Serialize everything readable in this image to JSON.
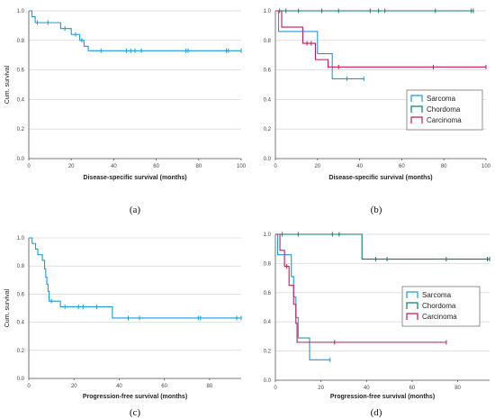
{
  "chart_data": [
    {
      "type": "line",
      "caption": "(a)",
      "xlabel": "Disease-specific survival (months)",
      "ylabel": "Cum. survival",
      "xlim": [
        0,
        100
      ],
      "ylim": [
        0,
        1.0
      ],
      "xticks": [
        0,
        20,
        40,
        60,
        80,
        100
      ],
      "yticks": [
        0.0,
        0.2,
        0.4,
        0.6,
        0.8,
        1.0
      ],
      "xtick_labels": [
        "0",
        "20",
        "40",
        "60",
        "80",
        "100"
      ],
      "ytick_labels": [
        "0.0",
        "0.2",
        "0.4",
        "0.6",
        "0.8",
        "1.0"
      ],
      "series": [
        {
          "color": "#1a9bd7",
          "steps": [
            [
              0,
              1.0
            ],
            [
              1.5,
              0.96
            ],
            [
              3,
              0.92
            ],
            [
              15,
              0.88
            ],
            [
              20,
              0.84
            ],
            [
              24,
              0.8
            ],
            [
              26,
              0.76
            ],
            [
              28,
              0.73
            ],
            [
              100,
              0.73
            ]
          ],
          "censor": [
            [
              4,
              0.92
            ],
            [
              9,
              0.92
            ],
            [
              17,
              0.88
            ],
            [
              22,
              0.84
            ],
            [
              25,
              0.8
            ],
            [
              34,
              0.73
            ],
            [
              46,
              0.73
            ],
            [
              48,
              0.73
            ],
            [
              50,
              0.73
            ],
            [
              53,
              0.73
            ],
            [
              74,
              0.73
            ],
            [
              75,
              0.73
            ],
            [
              93,
              0.73
            ],
            [
              94,
              0.73
            ],
            [
              100,
              0.73
            ]
          ]
        }
      ]
    },
    {
      "type": "line",
      "caption": "(b)",
      "xlabel": "Disease-specific survival (months)",
      "ylabel": "",
      "xlim": [
        0,
        100
      ],
      "ylim": [
        0,
        1.0
      ],
      "xticks": [
        0,
        20,
        40,
        60,
        80,
        100
      ],
      "yticks": [
        0.0,
        0.2,
        0.4,
        0.6,
        0.8,
        1.0
      ],
      "xtick_labels": [
        "0",
        "20",
        "40",
        "60",
        "80",
        "100"
      ],
      "ytick_labels": [
        "0.0",
        "0.2",
        "0.4",
        "0.6",
        "0.8",
        "1.0"
      ],
      "legend": {
        "position": "right",
        "entries": [
          "Sarcoma",
          "Chordoma",
          "Carcinoma"
        ]
      },
      "series": [
        {
          "name": "Sarcoma",
          "color": "#1a9bd7",
          "steps": [
            [
              0,
              1.0
            ],
            [
              1.5,
              0.86
            ],
            [
              14,
              0.86
            ],
            [
              20,
              0.71
            ],
            [
              27,
              0.54
            ],
            [
              42,
              0.54
            ]
          ],
          "censor": [
            [
              34,
              0.54
            ],
            [
              42,
              0.54
            ]
          ]
        },
        {
          "name": "Chordoma",
          "color": "#117a6e",
          "steps": [
            [
              0,
              1.0
            ],
            [
              94,
              1.0
            ]
          ],
          "censor": [
            [
              2,
              1.0
            ],
            [
              5,
              1.0
            ],
            [
              11,
              1.0
            ],
            [
              22,
              1.0
            ],
            [
              30,
              1.0
            ],
            [
              45,
              1.0
            ],
            [
              49,
              1.0
            ],
            [
              52,
              1.0
            ],
            [
              76,
              1.0
            ],
            [
              93,
              1.0
            ],
            [
              94,
              1.0
            ]
          ]
        },
        {
          "name": "Carcinoma",
          "color": "#c2185b",
          "steps": [
            [
              0,
              1.0
            ],
            [
              3,
              0.89
            ],
            [
              13,
              0.78
            ],
            [
              19,
              0.67
            ],
            [
              25,
              0.62
            ],
            [
              100,
              0.62
            ]
          ],
          "censor": [
            [
              15,
              0.78
            ],
            [
              17,
              0.78
            ],
            [
              30,
              0.62
            ],
            [
              75,
              0.62
            ],
            [
              100,
              0.62
            ]
          ]
        }
      ]
    },
    {
      "type": "line",
      "caption": "(c)",
      "xlabel": "Progression-free survival (months)",
      "ylabel": "Cum. survival",
      "xlim": [
        0,
        94
      ],
      "ylim": [
        0,
        1.0
      ],
      "xticks": [
        0,
        20,
        40,
        60,
        80
      ],
      "yticks": [
        0.0,
        0.2,
        0.4,
        0.6,
        0.8,
        1.0
      ],
      "xtick_labels": [
        "0",
        "20",
        "40",
        "60",
        "80"
      ],
      "ytick_labels": [
        "0.0",
        "0.2",
        "0.4",
        "0.6",
        "0.8",
        "1.0"
      ],
      "series": [
        {
          "color": "#1a9bd7",
          "steps": [
            [
              0,
              1.0
            ],
            [
              1.5,
              0.96
            ],
            [
              3,
              0.92
            ],
            [
              4,
              0.88
            ],
            [
              6,
              0.84
            ],
            [
              7,
              0.78
            ],
            [
              7.5,
              0.72
            ],
            [
              8,
              0.67
            ],
            [
              8.5,
              0.62
            ],
            [
              9,
              0.55
            ],
            [
              14,
              0.51
            ],
            [
              37,
              0.43
            ],
            [
              94,
              0.43
            ]
          ],
          "censor": [
            [
              10,
              0.55
            ],
            [
              16,
              0.51
            ],
            [
              22,
              0.51
            ],
            [
              24,
              0.51
            ],
            [
              30,
              0.51
            ],
            [
              44,
              0.43
            ],
            [
              49,
              0.43
            ],
            [
              75,
              0.43
            ],
            [
              76,
              0.43
            ],
            [
              92,
              0.43
            ],
            [
              94,
              0.43
            ]
          ]
        }
      ]
    },
    {
      "type": "line",
      "caption": "(d)",
      "xlabel": "Progression-free survival (months)",
      "ylabel": "",
      "xlim": [
        0,
        94
      ],
      "ylim": [
        0,
        1.0
      ],
      "xticks": [
        0,
        20,
        40,
        60,
        80
      ],
      "yticks": [
        0.0,
        0.2,
        0.4,
        0.6,
        0.8,
        1.0
      ],
      "xtick_labels": [
        "0",
        "20",
        "40",
        "60",
        "80"
      ],
      "ytick_labels": [
        "0.0",
        "0.2",
        "0.4",
        "0.6",
        "0.8",
        "1.0"
      ],
      "legend": {
        "position": "center-right",
        "entries": [
          "Sarcoma",
          "Chordoma",
          "Carcinoma"
        ]
      },
      "series": [
        {
          "name": "Sarcoma",
          "color": "#1a9bd7",
          "steps": [
            [
              0,
              1.0
            ],
            [
              1,
              0.86
            ],
            [
              7,
              0.71
            ],
            [
              8,
              0.57
            ],
            [
              9,
              0.43
            ],
            [
              10,
              0.29
            ],
            [
              15,
              0.14
            ],
            [
              24,
              0.14
            ]
          ],
          "censor": [
            [
              24,
              0.14
            ]
          ]
        },
        {
          "name": "Chordoma",
          "color": "#117a6e",
          "steps": [
            [
              0,
              1.0
            ],
            [
              38,
              1.0
            ],
            [
              38,
              0.83
            ],
            [
              94,
              0.83
            ]
          ],
          "censor": [
            [
              3,
              1.0
            ],
            [
              10,
              1.0
            ],
            [
              25,
              1.0
            ],
            [
              28,
              1.0
            ],
            [
              44,
              0.83
            ],
            [
              49,
              0.83
            ],
            [
              75,
              0.83
            ],
            [
              93,
              0.83
            ],
            [
              94,
              0.83
            ]
          ]
        },
        {
          "name": "Carcinoma",
          "color": "#c2185b",
          "steps": [
            [
              0,
              1.0
            ],
            [
              2,
              0.89
            ],
            [
              4,
              0.78
            ],
            [
              6,
              0.65
            ],
            [
              8,
              0.52
            ],
            [
              9,
              0.39
            ],
            [
              9.5,
              0.26
            ],
            [
              75,
              0.26
            ]
          ],
          "censor": [
            [
              5,
              0.78
            ],
            [
              26,
              0.26
            ],
            [
              75,
              0.26
            ]
          ]
        }
      ]
    }
  ]
}
